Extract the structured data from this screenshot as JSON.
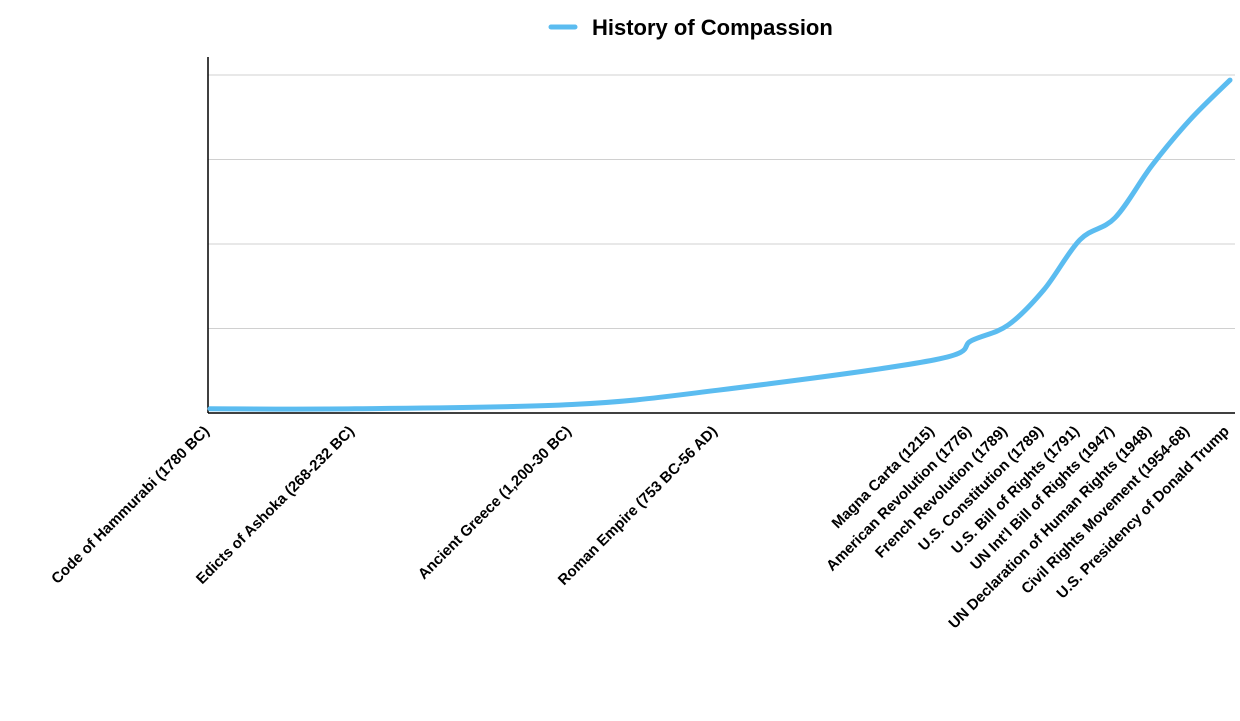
{
  "chart_data": {
    "type": "line",
    "categories": [
      "Code of Hammurabi (1780 BC)",
      "Edicts of Ashoka (268-232 BC)",
      "Ancient Greece  (1,200-30 BC)",
      "Roman Empire (753 BC-56 AD)",
      "Magna Carta (1215)",
      "American Revolution (1776)",
      "French Revolution (1789)",
      "U.S. Constitution (1789)",
      "U.S. Bill of Rights (1791)",
      "UN Int'l Bill of Rights (1947)",
      "UN Declaration of Human Rights (1948)",
      "Civil Rights Movement (1954-68)",
      "U.S. Presidency of Donald Trump"
    ],
    "series": [
      {
        "name": "History of Compassion",
        "color": "#5bbcf0",
        "values": [
          0.05,
          0.05,
          0.1,
          0.27,
          0.63,
          0.86,
          1.04,
          1.46,
          2.05,
          2.31,
          2.93,
          3.47,
          3.94
        ]
      }
    ],
    "ylim": [
      0,
      4
    ],
    "yticks": [
      0,
      1,
      2,
      3,
      4
    ],
    "grid": true,
    "legend": "top"
  }
}
